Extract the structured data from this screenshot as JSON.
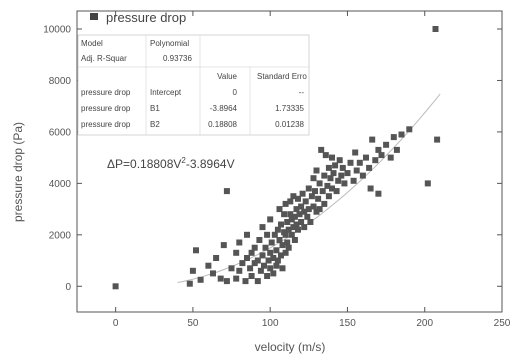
{
  "chart_data": {
    "type": "scatter",
    "title": "",
    "xlabel": "velocity (m/s)",
    "ylabel": "pressure drop (Pa)",
    "xlim": [
      -25,
      250
    ],
    "ylim": [
      -1000,
      10700
    ],
    "x_ticks": [
      "0",
      "50",
      "100",
      "150",
      "200",
      "250"
    ],
    "y_ticks": [
      "0",
      "2000",
      "4000",
      "6000",
      "8000",
      "10000"
    ],
    "x_tick_values": [
      0,
      50,
      100,
      150,
      200,
      250
    ],
    "y_tick_values": [
      0,
      2000,
      4000,
      6000,
      8000,
      10000
    ],
    "grid": false,
    "legend": {
      "position": "top-left",
      "entries": [
        "pressure drop"
      ]
    },
    "marker_color": "#555555",
    "fit_color": "#bbbbbb",
    "fit": {
      "a": 0.18808,
      "b": -3.8964,
      "x_range": [
        40,
        210
      ]
    },
    "stats_table": {
      "model_label": "Model",
      "model_value": "Polynomial",
      "r2_label": "Adj. R-Squar",
      "r2_value": "0.93736",
      "col_value": "Value",
      "col_error": "Standard Erro",
      "rows": [
        {
          "series": "pressure drop",
          "param": "Intercept",
          "value": "0",
          "error": "--"
        },
        {
          "series": "pressure drop",
          "param": "B1",
          "value": "-3.8964",
          "error": "1.73335"
        },
        {
          "series": "pressure drop",
          "param": "B2",
          "value": "0.18808",
          "error": "0.01238"
        }
      ]
    },
    "equation": {
      "prefix": "ΔP=0.18808V",
      "sup": "2",
      "suffix": "-3.8964V"
    },
    "series": [
      {
        "name": "pressure drop",
        "points": [
          [
            0,
            0
          ],
          [
            48,
            100
          ],
          [
            50,
            600
          ],
          [
            52,
            1400
          ],
          [
            55,
            250
          ],
          [
            60,
            800
          ],
          [
            63,
            500
          ],
          [
            65,
            1100
          ],
          [
            68,
            300
          ],
          [
            70,
            1600
          ],
          [
            72,
            3700
          ],
          [
            72,
            200
          ],
          [
            75,
            700
          ],
          [
            78,
            1300
          ],
          [
            78,
            300
          ],
          [
            80,
            1700
          ],
          [
            80,
            600
          ],
          [
            82,
            900
          ],
          [
            84,
            200
          ],
          [
            85,
            1100
          ],
          [
            85,
            2000
          ],
          [
            87,
            700
          ],
          [
            88,
            400
          ],
          [
            88,
            1300
          ],
          [
            90,
            900
          ],
          [
            90,
            1500
          ],
          [
            92,
            200
          ],
          [
            92,
            1000
          ],
          [
            93,
            1800
          ],
          [
            94,
            600
          ],
          [
            95,
            1200
          ],
          [
            95,
            2300
          ],
          [
            96,
            800
          ],
          [
            97,
            1500
          ],
          [
            98,
            400
          ],
          [
            98,
            2000
          ],
          [
            99,
            1000
          ],
          [
            100,
            1300
          ],
          [
            100,
            700
          ],
          [
            100,
            2600
          ],
          [
            101,
            1700
          ],
          [
            102,
            500
          ],
          [
            102,
            1100
          ],
          [
            103,
            2000
          ],
          [
            104,
            1400
          ],
          [
            104,
            800
          ],
          [
            105,
            2200
          ],
          [
            105,
            1000
          ],
          [
            106,
            1800
          ],
          [
            106,
            3000
          ],
          [
            107,
            1200
          ],
          [
            107,
            2400
          ],
          [
            108,
            1600
          ],
          [
            108,
            700
          ],
          [
            109,
            2100
          ],
          [
            109,
            2800
          ],
          [
            110,
            1300
          ],
          [
            110,
            2000
          ],
          [
            110,
            3200
          ],
          [
            111,
            1700
          ],
          [
            111,
            2500
          ],
          [
            112,
            2200
          ],
          [
            112,
            1500
          ],
          [
            113,
            2800
          ],
          [
            113,
            3300
          ],
          [
            114,
            2000
          ],
          [
            114,
            2600
          ],
          [
            115,
            2300
          ],
          [
            115,
            3500
          ],
          [
            116,
            2700
          ],
          [
            116,
            1800
          ],
          [
            117,
            3000
          ],
          [
            117,
            2400
          ],
          [
            118,
            2200
          ],
          [
            118,
            3400
          ],
          [
            119,
            2800
          ],
          [
            120,
            3100
          ],
          [
            120,
            2500
          ],
          [
            121,
            3600
          ],
          [
            122,
            2900
          ],
          [
            122,
            2300
          ],
          [
            123,
            3300
          ],
          [
            124,
            2700
          ],
          [
            125,
            3800
          ],
          [
            125,
            3000
          ],
          [
            126,
            2500
          ],
          [
            127,
            3500
          ],
          [
            128,
            4200
          ],
          [
            128,
            3100
          ],
          [
            129,
            3700
          ],
          [
            130,
            2900
          ],
          [
            130,
            4500
          ],
          [
            131,
            3400
          ],
          [
            132,
            4000
          ],
          [
            132,
            3000
          ],
          [
            133,
            5300
          ],
          [
            134,
            3700
          ],
          [
            135,
            4300
          ],
          [
            135,
            3200
          ],
          [
            136,
            5100
          ],
          [
            137,
            3900
          ],
          [
            138,
            4600
          ],
          [
            138,
            3500
          ],
          [
            139,
            4200
          ],
          [
            140,
            5000
          ],
          [
            140,
            3800
          ],
          [
            141,
            4400
          ],
          [
            142,
            4700
          ],
          [
            143,
            3700
          ],
          [
            144,
            4100
          ],
          [
            145,
            4900
          ],
          [
            146,
            4300
          ],
          [
            147,
            4600
          ],
          [
            148,
            4000
          ],
          [
            150,
            4400
          ],
          [
            152,
            4800
          ],
          [
            154,
            4100
          ],
          [
            155,
            5200
          ],
          [
            156,
            4500
          ],
          [
            158,
            4800
          ],
          [
            160,
            4300
          ],
          [
            162,
            5000
          ],
          [
            164,
            4600
          ],
          [
            165,
            3800
          ],
          [
            166,
            5700
          ],
          [
            168,
            4900
          ],
          [
            170,
            5300
          ],
          [
            170,
            3600
          ],
          [
            172,
            5100
          ],
          [
            175,
            5500
          ],
          [
            178,
            5000
          ],
          [
            180,
            5800
          ],
          [
            182,
            5300
          ],
          [
            185,
            5900
          ],
          [
            190,
            6100
          ],
          [
            202,
            4000
          ],
          [
            207,
            10000
          ],
          [
            208,
            5700
          ]
        ]
      }
    ]
  }
}
